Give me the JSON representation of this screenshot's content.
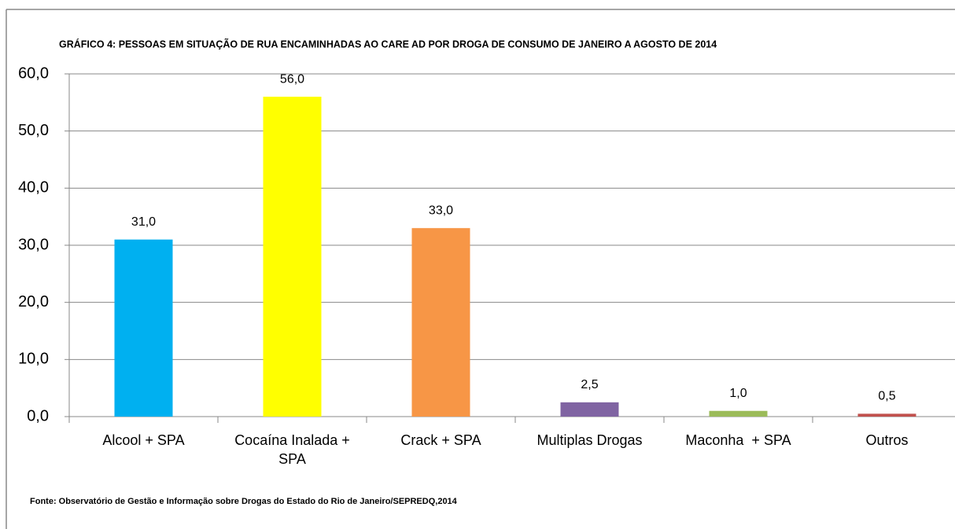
{
  "chart_data": {
    "type": "bar",
    "title": "GRÁFICO 4: PESSOAS EM SITUAÇÃO DE RUA ENCAMINHADAS AO CARE AD POR DROGA DE CONSUMO DE JANEIRO A AGOSTO DE 2014",
    "source": "Fonte: Observatório de Gestão e  Informação sobre Drogas do Estado do Rio de Janeiro/SEPREDQ,2014",
    "categories": [
      "Alcool + SPA",
      "Cocaína Inalada + SPA",
      "Crack + SPA",
      "Multiplas Drogas",
      "Maconha  + SPA",
      "Outros"
    ],
    "values": [
      31,
      56,
      33,
      2.5,
      1,
      0.5
    ],
    "value_labels": [
      "31,0",
      "56,0",
      "33,0",
      "2,5",
      "1,0",
      "0,5"
    ],
    "colors": [
      "#00b0f0",
      "#ffff00",
      "#f79646",
      "#8064a2",
      "#9bbb59",
      "#c0504d"
    ],
    "ylim": [
      0,
      60
    ],
    "yticks": [
      {
        "value": 0,
        "label": "0,0"
      },
      {
        "value": 10,
        "label": "10,0"
      },
      {
        "value": 20,
        "label": "20,0"
      },
      {
        "value": 30,
        "label": "30,0"
      },
      {
        "value": 40,
        "label": "40,0"
      },
      {
        "value": 50,
        "label": "50,0"
      },
      {
        "value": 60,
        "label": "60,0"
      }
    ],
    "grid": true
  }
}
